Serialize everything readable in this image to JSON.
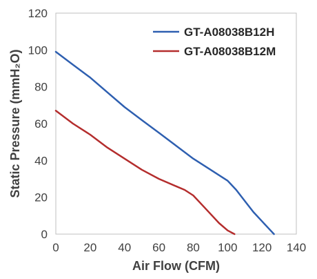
{
  "chart_data": {
    "type": "line",
    "title": "",
    "xlabel": "Air Flow (CFM)",
    "ylabel": "Static Pressure (mmH₂O)",
    "xlim": [
      0,
      140
    ],
    "ylim": [
      0,
      120
    ],
    "xticks": [
      0,
      20,
      40,
      60,
      80,
      100,
      120,
      140
    ],
    "yticks": [
      0,
      20,
      40,
      60,
      80,
      100,
      120
    ],
    "grid": false,
    "legend_position": "top-right",
    "series": [
      {
        "name": "GT-A08038B12H",
        "color": "#2e5fb0",
        "x": [
          0,
          10,
          20,
          30,
          40,
          50,
          60,
          70,
          80,
          90,
          100,
          102,
          105,
          110,
          115,
          120,
          125,
          127
        ],
        "y": [
          99,
          92,
          85,
          77,
          69,
          62,
          55,
          48,
          41,
          35,
          29,
          27,
          24,
          18,
          12,
          7,
          2,
          0
        ]
      },
      {
        "name": "GT-A08038B12M",
        "color": "#b42d2d",
        "x": [
          0,
          10,
          20,
          30,
          40,
          50,
          60,
          70,
          75,
          80,
          85,
          90,
          95,
          100,
          104
        ],
        "y": [
          67,
          60,
          54,
          47,
          41,
          35,
          30,
          26,
          24,
          21,
          16,
          11,
          6,
          2,
          0
        ]
      }
    ]
  }
}
